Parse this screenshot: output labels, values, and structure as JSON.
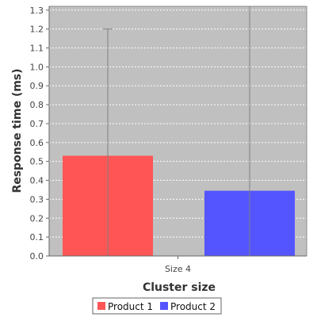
{
  "chart_data": {
    "type": "bar",
    "categories": [
      "Size 4"
    ],
    "series": [
      {
        "name": "Product 1",
        "values": [
          0.53
        ],
        "error_low": [
          0.0
        ],
        "error_high": [
          1.2
        ],
        "color": "#ff5555"
      },
      {
        "name": "Product 2",
        "values": [
          0.345
        ],
        "error_low": [
          0.0
        ],
        "error_high": [
          1.32
        ],
        "color": "#5555ff"
      }
    ],
    "xlabel": "Cluster size",
    "ylabel": "Response time (ms)",
    "ylim": [
      0,
      1.32
    ],
    "yticks": [
      0.0,
      0.1,
      0.2,
      0.3,
      0.4,
      0.5,
      0.6,
      0.7,
      0.8,
      0.9,
      1.0,
      1.1,
      1.2,
      1.3
    ],
    "ytick_labels": [
      "0.0",
      "0.1",
      "0.2",
      "0.3",
      "0.4",
      "0.5",
      "0.6",
      "0.7",
      "0.8",
      "0.9",
      "1.0",
      "1.1",
      "1.2",
      "1.3"
    ],
    "grid": true,
    "legend_position": "bottom",
    "plot_background": "#c0c0c0",
    "grid_color": "#ffffff",
    "error_bar_color": "#808080"
  }
}
